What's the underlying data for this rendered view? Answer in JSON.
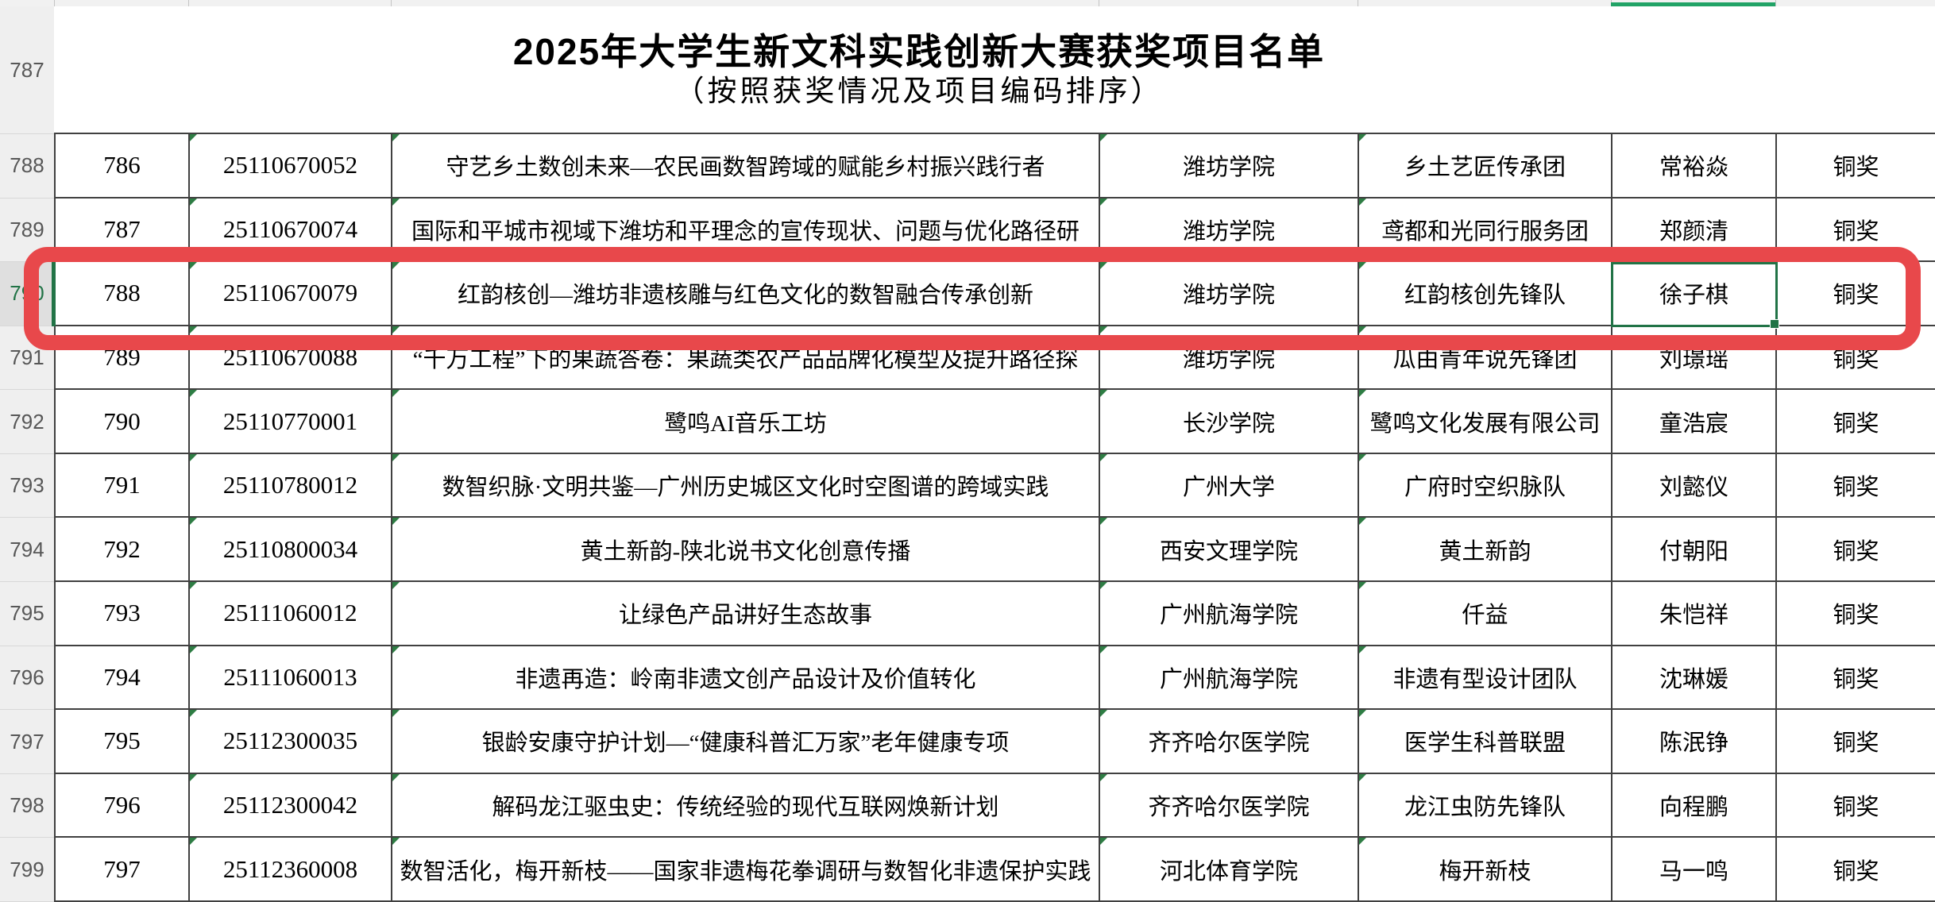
{
  "sheet": {
    "title_line1": "2025年大学生新文科实践创新大赛获奖项目名单",
    "title_line2": "（按照获奖情况及项目编码排序）",
    "row_headers": [
      "787",
      "788",
      "789",
      "790",
      "791",
      "792",
      "793",
      "794",
      "795",
      "796",
      "797",
      "798",
      "799"
    ],
    "selected_row_header": "790",
    "rows": [
      {
        "num": "786",
        "code": "25110670052",
        "project": "守艺乡土数创未来—农民画数智跨域的赋能乡村振兴践行者",
        "school": "潍坊学院",
        "team": "乡土艺匠传承团",
        "leader": "常裕焱",
        "award": "铜奖"
      },
      {
        "num": "787",
        "code": "25110670074",
        "project": "国际和平城市视域下潍坊和平理念的宣传现状、问题与优化路径研",
        "school": "潍坊学院",
        "team": "鸢都和光同行服务团",
        "leader": "郑颜清",
        "award": "铜奖"
      },
      {
        "num": "788",
        "code": "25110670079",
        "project": "红韵核创—潍坊非遗核雕与红色文化的数智融合传承创新",
        "school": "潍坊学院",
        "team": "红韵核创先锋队",
        "leader": "徐子棋",
        "award": "铜奖"
      },
      {
        "num": "789",
        "code": "25110670088",
        "project": "“千万工程”下的果蔬答卷：果蔬类农产品品牌化模型及提升路径探",
        "school": "潍坊学院",
        "team": "瓜由青年说先锋团",
        "leader": "刘璟瑶",
        "award": "铜奖"
      },
      {
        "num": "790",
        "code": "25110770001",
        "project": "鹭鸣AI音乐工坊",
        "school": "长沙学院",
        "team": "鹭鸣文化发展有限公司",
        "leader": "童浩宸",
        "award": "铜奖"
      },
      {
        "num": "791",
        "code": "25110780012",
        "project": "数智织脉·文明共鉴—广州历史城区文化时空图谱的跨域实践",
        "school": "广州大学",
        "team": "广府时空织脉队",
        "leader": "刘懿仪",
        "award": "铜奖"
      },
      {
        "num": "792",
        "code": "25110800034",
        "project": "黄土新韵-陕北说书文化创意传播",
        "school": "西安文理学院",
        "team": "黄土新韵",
        "leader": "付朝阳",
        "award": "铜奖"
      },
      {
        "num": "793",
        "code": "25111060012",
        "project": "让绿色产品讲好生态故事",
        "school": "广州航海学院",
        "team": "仟益",
        "leader": "朱恺祥",
        "award": "铜奖"
      },
      {
        "num": "794",
        "code": "25111060013",
        "project": "非遗再造：岭南非遗文创产品设计及价值转化",
        "school": "广州航海学院",
        "team": "非遗有型设计团队",
        "leader": "沈琳媛",
        "award": "铜奖"
      },
      {
        "num": "795",
        "code": "25112300035",
        "project": "银龄安康守护计划—“健康科普汇万家”老年健康专项",
        "school": "齐齐哈尔医学院",
        "team": "医学生科普联盟",
        "leader": "陈泯铮",
        "award": "铜奖"
      },
      {
        "num": "796",
        "code": "25112300042",
        "project": "解码龙江驱虫史：传统经验的现代互联网焕新计划",
        "school": "齐齐哈尔医学院",
        "team": "龙江虫防先锋队",
        "leader": "向程鹏",
        "award": "铜奖"
      },
      {
        "num": "797",
        "code": "25112360008",
        "project": "数智活化，梅开新枝——国家非遗梅花拳调研与数智化非遗保护实践",
        "school": "河北体育学院",
        "team": "梅开新枝",
        "leader": "马一鸣",
        "award": "铜奖"
      }
    ],
    "selection": {
      "highlighted_entry_num": "788",
      "active_cell_value": "徐子棋"
    },
    "colors": {
      "annotation_red": "#e8484b",
      "selection_green": "#217346",
      "header_underline_green": "#21a366",
      "triangle_green": "#2e7d44",
      "grid_border": "#404040",
      "row_header_bg": "#efefef"
    }
  }
}
